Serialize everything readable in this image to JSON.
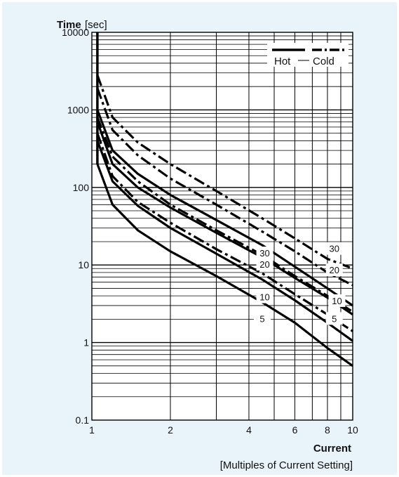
{
  "chart_data": {
    "type": "line",
    "title": "",
    "xlabel": "Current",
    "xlabel_sub": "[Multiples of Current Setting]",
    "ylabel_bold": "Time",
    "ylabel_unit": "[sec]",
    "x_scale": "log",
    "y_scale": "log",
    "xlim": [
      1,
      10
    ],
    "ylim": [
      0.1,
      10000
    ],
    "x_ticks": [
      "1",
      "2",
      "4",
      "6",
      "8",
      "10"
    ],
    "x_tick_values": [
      1,
      2,
      4,
      6,
      8,
      10
    ],
    "y_ticks": [
      "0.1",
      "1",
      "10",
      "100",
      "1000",
      "10000"
    ],
    "y_tick_values": [
      0.1,
      1,
      10,
      100,
      1000,
      10000
    ],
    "grid": true,
    "legend": {
      "position": "top-right",
      "entries": [
        {
          "label": "Hot",
          "style": "solid"
        },
        {
          "label": "Cold",
          "style": "dash-dot"
        }
      ]
    },
    "vertical_segment": {
      "x": 1.05,
      "y_from": 200,
      "y_to": 10000
    },
    "series": [
      {
        "name": "5",
        "style": "solid",
        "x": [
          1.05,
          1.2,
          1.5,
          2,
          3,
          4.5,
          6,
          8,
          10
        ],
        "y": [
          200,
          60,
          28,
          15,
          7.2,
          3.3,
          1.8,
          0.85,
          0.5
        ]
      },
      {
        "name": "10",
        "style": "solid",
        "x": [
          1.05,
          1.2,
          1.5,
          2,
          3,
          4.5,
          6,
          8,
          10
        ],
        "y": [
          400,
          120,
          58,
          30,
          14,
          6.5,
          3.5,
          1.8,
          1.05
        ]
      },
      {
        "name": "20",
        "style": "solid",
        "x": [
          1.05,
          1.2,
          1.5,
          2,
          3,
          4.5,
          6,
          8,
          10
        ],
        "y": [
          700,
          200,
          100,
          55,
          26,
          12.5,
          6.8,
          3.8,
          2.3
        ]
      },
      {
        "name": "30",
        "style": "solid",
        "x": [
          1.05,
          1.2,
          1.5,
          2,
          3,
          4.5,
          6,
          8,
          10
        ],
        "y": [
          1000,
          300,
          150,
          80,
          38,
          18,
          9.5,
          5,
          3
        ]
      },
      {
        "name": "5",
        "style": "dash-dot",
        "x": [
          1.05,
          1.2,
          1.5,
          2,
          3,
          4.5,
          6,
          8,
          10
        ],
        "y": [
          500,
          140,
          65,
          35,
          16,
          7.8,
          4.2,
          2.3,
          1.4
        ]
      },
      {
        "name": "10",
        "style": "dash-dot",
        "x": [
          1.05,
          1.2,
          1.5,
          2,
          3,
          4.5,
          6,
          8,
          10
        ],
        "y": [
          800,
          250,
          120,
          60,
          28,
          13.5,
          7.2,
          4,
          2.5
        ]
      },
      {
        "name": "20",
        "style": "dash-dot",
        "x": [
          1.05,
          1.2,
          1.5,
          2,
          3,
          4.5,
          6,
          8,
          10
        ],
        "y": [
          1900,
          550,
          260,
          130,
          60,
          27,
          15,
          8,
          5.5
        ]
      },
      {
        "name": "30",
        "style": "dash-dot",
        "x": [
          1.05,
          1.2,
          1.5,
          2,
          3,
          4.5,
          6,
          8,
          10
        ],
        "y": [
          2800,
          800,
          380,
          200,
          90,
          40,
          22,
          12,
          9
        ]
      }
    ],
    "curve_labels_hot": [
      {
        "text": "30",
        "x": 4.6,
        "y": 14
      },
      {
        "text": "20",
        "x": 4.6,
        "y": 10
      },
      {
        "text": "10",
        "x": 4.6,
        "y": 3.8
      },
      {
        "text": "5",
        "x": 4.5,
        "y": 2.0
      }
    ],
    "curve_labels_cold": [
      {
        "text": "30",
        "x": 8.5,
        "y": 16
      },
      {
        "text": "20",
        "x": 8.5,
        "y": 8.5
      },
      {
        "text": "10",
        "x": 8.7,
        "y": 3.4
      },
      {
        "text": "5",
        "x": 8.5,
        "y": 2.0
      }
    ]
  }
}
